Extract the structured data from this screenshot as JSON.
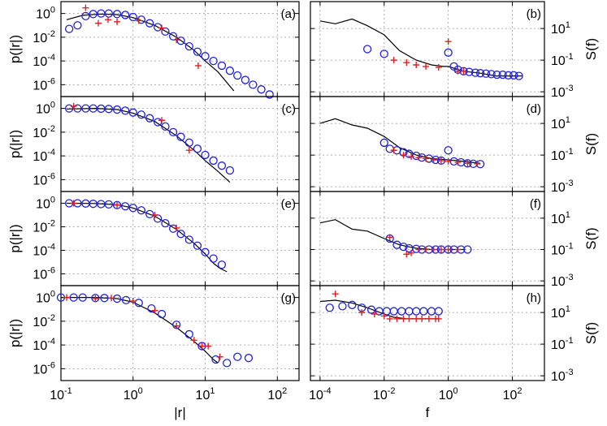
{
  "colors": {
    "sim": "#000000",
    "circles": "#2020e0",
    "crosses": "#e02020",
    "grid": "#9a9a9a"
  },
  "axes": {
    "left": {
      "xlabel": "|r|",
      "ylabel": "p(|r|)",
      "xticks": [
        {
          "v": 0.1,
          "label": "10",
          "exp": "-1"
        },
        {
          "v": 1,
          "label": "10",
          "exp": "0"
        },
        {
          "v": 10,
          "label": "10",
          "exp": "1"
        },
        {
          "v": 100,
          "label": "10",
          "exp": "2"
        }
      ],
      "yticks": [
        {
          "v": 1,
          "label": "10",
          "exp": "0"
        },
        {
          "v": 0.01,
          "label": "10",
          "exp": "-2"
        },
        {
          "v": 0.0001,
          "label": "10",
          "exp": "-4"
        },
        {
          "v": 1e-06,
          "label": "10",
          "exp": "-6"
        }
      ]
    },
    "right": {
      "xlabel": "f",
      "ylabel": "S(f)",
      "xticks": [
        {
          "v": 0.0001,
          "label": "10",
          "exp": "-4"
        },
        {
          "v": 0.01,
          "label": "10",
          "exp": "-2"
        },
        {
          "v": 1,
          "label": "10",
          "exp": "0"
        },
        {
          "v": 100,
          "label": "10",
          "exp": "2"
        }
      ],
      "yticks": [
        {
          "v": 10,
          "label": "10",
          "exp": "1"
        },
        {
          "v": 0.1,
          "label": "10",
          "exp": "-1"
        },
        {
          "v": 0.001,
          "label": "10",
          "exp": "-3"
        }
      ]
    }
  },
  "chart_data": [
    {
      "type": "line",
      "panel": "a",
      "label": "(a)",
      "xscale": "log",
      "yscale": "log",
      "xlim": [
        0.1,
        200
      ],
      "ylim": [
        1e-07,
        10
      ],
      "grid": true,
      "series": [
        {
          "marker": "line",
          "x": [
            0.12,
            0.2,
            0.35,
            0.6,
            1,
            2,
            4,
            7,
            10,
            15,
            25
          ],
          "y": [
            0.3,
            0.7,
            0.9,
            0.8,
            0.45,
            0.1,
            0.01,
            0.0008,
            0.0001,
            1.2e-05,
            3e-07
          ]
        },
        {
          "marker": "circle",
          "x": [
            0.13,
            0.17,
            0.22,
            0.28,
            0.36,
            0.46,
            0.6,
            0.78,
            1,
            1.3,
            1.7,
            2.2,
            2.8,
            3.6,
            4.6,
            6,
            7.8,
            10,
            13,
            17,
            22,
            28,
            36,
            46,
            60,
            78
          ],
          "y": [
            0.05,
            0.1,
            0.6,
            0.9,
            1,
            1,
            0.9,
            0.75,
            0.5,
            0.3,
            0.15,
            0.07,
            0.03,
            0.012,
            0.005,
            0.0017,
            0.0006,
            0.00025,
            0.0001,
            4e-05,
            1.5e-05,
            6e-06,
            2.5e-06,
            1e-06,
            4e-07,
            1.5e-07
          ]
        },
        {
          "marker": "plus",
          "x": [
            0.22,
            0.33,
            0.45,
            0.6,
            1.2,
            2.5,
            4,
            8
          ],
          "y": [
            3,
            0.15,
            0.3,
            0.2,
            0.25,
            0.06,
            0.006,
            4e-05
          ]
        }
      ]
    },
    {
      "type": "line",
      "panel": "b",
      "label": "(b)",
      "xscale": "log",
      "yscale": "log",
      "xlim": [
        5e-05,
        1000
      ],
      "ylim": [
        0.0005,
        500
      ],
      "grid": true,
      "series": [
        {
          "marker": "line",
          "x": [
            0.0001,
            0.0003,
            0.001,
            0.003,
            0.01,
            0.03,
            0.1,
            0.3,
            0.7,
            1,
            3,
            10,
            30,
            100,
            200
          ],
          "y": [
            30,
            20,
            40,
            15,
            4,
            0.4,
            0.1,
            0.05,
            0.04,
            0.04,
            0.02,
            0.015,
            0.01,
            0.01,
            0.01
          ]
        },
        {
          "marker": "circle",
          "x": [
            0.003,
            0.01,
            1,
            1.5,
            2,
            3,
            4.5,
            7,
            10,
            15,
            22,
            33,
            50,
            75,
            110,
            160
          ],
          "y": [
            0.5,
            0.25,
            0.3,
            0.04,
            0.025,
            0.02,
            0.018,
            0.016,
            0.015,
            0.014,
            0.013,
            0.012,
            0.012,
            0.011,
            0.011,
            0.01
          ]
        },
        {
          "marker": "plus",
          "x": [
            0.02,
            0.05,
            0.1,
            0.2,
            0.5,
            1,
            2,
            3
          ],
          "y": [
            0.1,
            0.07,
            0.05,
            0.04,
            0.035,
            1.5,
            0.02,
            0.02
          ]
        }
      ]
    },
    {
      "type": "line",
      "panel": "c",
      "label": "(c)",
      "xscale": "log",
      "yscale": "log",
      "xlim": [
        0.1,
        200
      ],
      "ylim": [
        1e-07,
        10
      ],
      "grid": true,
      "series": [
        {
          "marker": "line",
          "x": [
            0.12,
            0.3,
            0.6,
            1,
            2,
            4,
            7,
            10,
            15,
            22
          ],
          "y": [
            0.9,
            1,
            0.8,
            0.4,
            0.08,
            0.005,
            0.0003,
            4e-05,
            5e-06,
            6e-07
          ]
        },
        {
          "marker": "circle",
          "x": [
            0.13,
            0.17,
            0.22,
            0.28,
            0.36,
            0.46,
            0.6,
            0.78,
            1,
            1.3,
            1.7,
            2.2,
            2.8,
            3.6,
            4.6,
            6,
            7.8,
            10,
            13,
            17,
            22
          ],
          "y": [
            1,
            1,
            1,
            1,
            0.95,
            0.9,
            0.8,
            0.65,
            0.45,
            0.3,
            0.15,
            0.07,
            0.03,
            0.01,
            0.004,
            0.0013,
            0.0004,
            0.00012,
            4e-05,
            1.5e-05,
            6e-06
          ]
        },
        {
          "marker": "plus",
          "x": [
            0.15,
            2.5,
            6
          ],
          "y": [
            1.5,
            0.1,
            0.0003
          ]
        }
      ]
    },
    {
      "type": "line",
      "panel": "d",
      "label": "(d)",
      "xscale": "log",
      "yscale": "log",
      "xlim": [
        5e-05,
        1000
      ],
      "ylim": [
        0.0005,
        500
      ],
      "grid": true,
      "series": [
        {
          "marker": "line",
          "x": [
            0.0001,
            0.0003,
            0.001,
            0.003,
            0.01,
            0.03,
            0.1,
            0.3,
            1,
            3,
            10
          ],
          "y": [
            10,
            20,
            8,
            5,
            1.5,
            0.3,
            0.1,
            0.06,
            0.05,
            0.04,
            0.03
          ]
        },
        {
          "marker": "circle",
          "x": [
            0.01,
            0.015,
            0.025,
            0.04,
            0.06,
            0.1,
            0.15,
            0.25,
            0.4,
            0.6,
            1,
            1.5,
            2.5,
            4,
            6,
            10
          ],
          "y": [
            0.6,
            0.25,
            0.2,
            0.15,
            0.12,
            0.09,
            0.07,
            0.06,
            0.05,
            0.045,
            0.2,
            0.04,
            0.035,
            0.03,
            0.028,
            0.027
          ]
        },
        {
          "marker": "plus",
          "x": [
            0.02,
            0.04,
            0.07,
            0.12,
            0.2,
            0.35,
            0.6,
            1,
            2,
            4,
            8
          ],
          "y": [
            0.2,
            0.1,
            0.08,
            0.07,
            0.06,
            0.05,
            0.045,
            0.04,
            0.035,
            0.03,
            0.028
          ]
        }
      ]
    },
    {
      "type": "line",
      "panel": "e",
      "label": "(e)",
      "xscale": "log",
      "yscale": "log",
      "xlim": [
        0.1,
        200
      ],
      "ylim": [
        1e-07,
        10
      ],
      "grid": true,
      "series": [
        {
          "marker": "line",
          "x": [
            0.12,
            0.3,
            0.6,
            1,
            2,
            4,
            7,
            10,
            13,
            16,
            20
          ],
          "y": [
            1,
            0.95,
            0.75,
            0.4,
            0.08,
            0.006,
            0.0004,
            5e-05,
            8e-06,
            3e-06,
            1.5e-06
          ]
        },
        {
          "marker": "circle",
          "x": [
            0.13,
            0.17,
            0.22,
            0.28,
            0.36,
            0.46,
            0.6,
            0.78,
            1,
            1.3,
            1.7,
            2.2,
            2.8,
            3.6,
            4.6,
            6,
            7.8,
            10,
            13,
            17
          ],
          "y": [
            1,
            1,
            0.95,
            0.9,
            0.85,
            0.8,
            0.7,
            0.55,
            0.4,
            0.25,
            0.12,
            0.05,
            0.02,
            0.007,
            0.0025,
            0.0008,
            0.00025,
            7e-05,
            2e-05,
            6e-06
          ]
        },
        {
          "marker": "plus",
          "x": [
            0.15,
            0.6,
            2,
            4
          ],
          "y": [
            1,
            0.7,
            0.1,
            0.008
          ]
        }
      ]
    },
    {
      "type": "line",
      "panel": "f",
      "label": "(f)",
      "xscale": "log",
      "yscale": "log",
      "xlim": [
        5e-05,
        1000
      ],
      "ylim": [
        0.0005,
        500
      ],
      "grid": true,
      "series": [
        {
          "marker": "line",
          "x": [
            0.0001,
            0.0003,
            0.001,
            0.003,
            0.01,
            0.03,
            0.1,
            0.3,
            1,
            3
          ],
          "y": [
            5,
            8,
            2,
            1.5,
            0.5,
            0.2,
            0.12,
            0.1,
            0.1,
            0.1
          ]
        },
        {
          "marker": "circle",
          "x": [
            0.015,
            0.025,
            0.04,
            0.06,
            0.1,
            0.15,
            0.25,
            0.4,
            0.6,
            1,
            1.5,
            2.5,
            4
          ],
          "y": [
            0.5,
            0.2,
            0.15,
            0.12,
            0.11,
            0.1,
            0.1,
            0.1,
            0.1,
            0.1,
            0.1,
            0.1,
            0.1
          ]
        },
        {
          "marker": "plus",
          "x": [
            0.015,
            0.05,
            0.07,
            0.12,
            0.2,
            0.35,
            0.6,
            1,
            2
          ],
          "y": [
            0.6,
            0.05,
            0.06,
            0.1,
            0.1,
            0.1,
            0.1,
            0.1,
            0.1
          ]
        }
      ]
    },
    {
      "type": "line",
      "panel": "g",
      "label": "(g)",
      "xscale": "log",
      "yscale": "log",
      "xlim": [
        0.1,
        200
      ],
      "ylim": [
        1e-07,
        10
      ],
      "grid": true,
      "series": [
        {
          "marker": "line",
          "x": [
            0.1,
            0.3,
            0.6,
            1,
            2,
            4,
            7,
            10,
            13,
            15
          ],
          "y": [
            1,
            1,
            0.8,
            0.4,
            0.05,
            0.003,
            0.0002,
            3e-05,
            6e-06,
            3e-06
          ]
        },
        {
          "marker": "circle",
          "x": [
            0.1,
            0.15,
            0.2,
            0.3,
            0.4,
            0.6,
            0.8,
            1.2,
            1.8,
            2.5,
            4,
            6,
            9,
            14,
            20,
            28,
            40
          ],
          "y": [
            1,
            1,
            1,
            0.9,
            0.9,
            0.8,
            0.6,
            0.35,
            0.12,
            0.04,
            0.005,
            0.0008,
            8e-05,
            6e-06,
            3e-06,
            1e-05,
            8e-06
          ]
        },
        {
          "marker": "plus",
          "x": [
            0.12,
            0.3,
            0.5,
            1,
            2,
            4,
            7,
            9,
            11,
            16
          ],
          "y": [
            1,
            0.8,
            0.9,
            0.5,
            0.08,
            0.004,
            0.00025,
            8e-05,
            8e-05,
            1e-05
          ]
        }
      ]
    },
    {
      "type": "line",
      "panel": "h",
      "label": "(h)",
      "xscale": "log",
      "yscale": "log",
      "xlim": [
        5e-05,
        1000
      ],
      "ylim": [
        0.0005,
        500
      ],
      "grid": true,
      "series": [
        {
          "marker": "line",
          "x": [
            0.0001,
            0.0003,
            0.001,
            0.003,
            0.01,
            0.02,
            0.05,
            0.1,
            0.5
          ],
          "y": [
            50,
            60,
            40,
            20,
            8,
            5,
            4,
            4,
            4
          ]
        },
        {
          "marker": "circle",
          "x": [
            0.0002,
            0.0005,
            0.001,
            0.002,
            0.004,
            0.007,
            0.012,
            0.02,
            0.035,
            0.06,
            0.1,
            0.17,
            0.3,
            0.5
          ],
          "y": [
            20,
            25,
            30,
            20,
            15,
            12,
            12,
            12,
            12,
            12,
            12,
            12,
            12,
            12
          ]
        },
        {
          "marker": "plus",
          "x": [
            0.0003,
            0.002,
            0.005,
            0.01,
            0.015,
            0.025,
            0.04,
            0.06,
            0.1,
            0.15,
            0.25,
            0.4,
            0.5
          ],
          "y": [
            150,
            10,
            8,
            6,
            4,
            4,
            4,
            4,
            4,
            4,
            4,
            4,
            4
          ]
        }
      ]
    }
  ]
}
